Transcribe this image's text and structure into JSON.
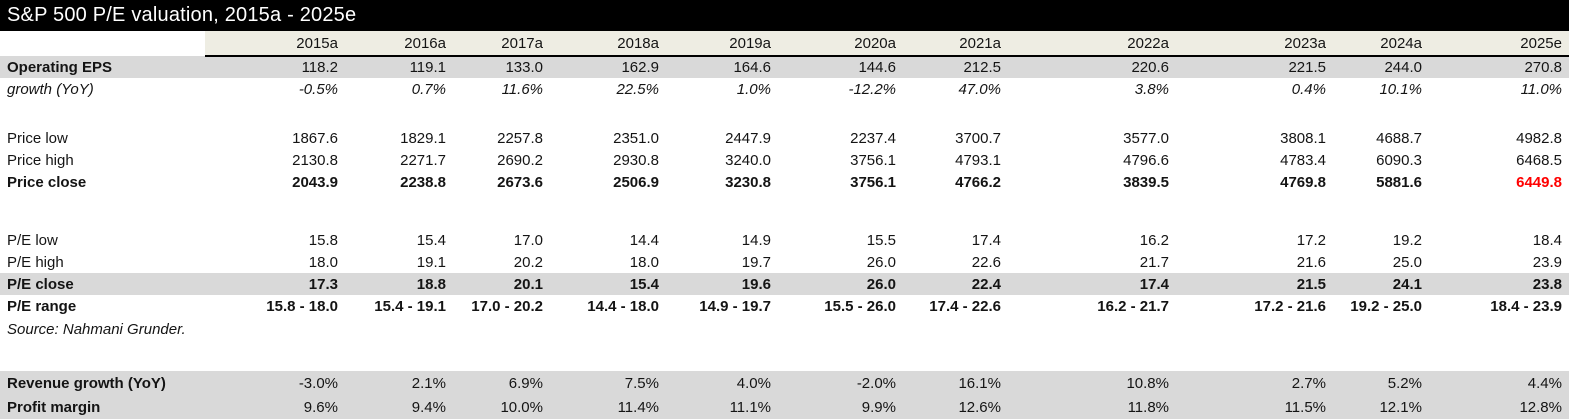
{
  "title": "S&P 500 P/E valuation, 2015a - 2025e",
  "colors": {
    "title_bg": "#000000",
    "title_text": "#FFFFFF",
    "header_bg": "#EEEDE3",
    "row_gray": "#D9D9D9",
    "highlight_red": "#FF0000"
  },
  "table": {
    "years": [
      "2015a",
      "2016a",
      "2017a",
      "2018a",
      "2019a",
      "2020a",
      "2021a",
      "2022a",
      "2023a",
      "2024a",
      "2025e"
    ],
    "rows": [
      {
        "label": "Operating EPS",
        "style": "eps",
        "values": [
          "118.2",
          "119.1",
          "133.0",
          "162.9",
          "164.6",
          "144.6",
          "212.5",
          "220.6",
          "221.5",
          "244.0",
          "270.8"
        ]
      },
      {
        "label": "growth (YoY)",
        "style": "growth",
        "values": [
          "-0.5%",
          "0.7%",
          "11.6%",
          "22.5%",
          "1.0%",
          "-12.2%",
          "47.0%",
          "3.8%",
          "0.4%",
          "10.1%",
          "11.0%"
        ]
      },
      {
        "style": "spacer1"
      },
      {
        "label": "Price low",
        "style": "plain",
        "values": [
          "1867.6",
          "1829.1",
          "2257.8",
          "2351.0",
          "2447.9",
          "2237.4",
          "3700.7",
          "3577.0",
          "3808.1",
          "4688.7",
          "4982.8"
        ]
      },
      {
        "label": "Price high",
        "style": "plain",
        "values": [
          "2130.8",
          "2271.7",
          "2690.2",
          "2930.8",
          "3240.0",
          "3756.1",
          "4793.1",
          "4796.6",
          "4783.4",
          "6090.3",
          "6468.5"
        ]
      },
      {
        "label": "Price close",
        "style": "bold",
        "red_last": true,
        "values": [
          "2043.9",
          "2238.8",
          "2673.6",
          "2506.9",
          "3230.8",
          "3756.1",
          "4766.2",
          "3839.5",
          "4769.8",
          "5881.6",
          "6449.8"
        ]
      },
      {
        "style": "spacer2"
      },
      {
        "label": "P/E low",
        "style": "plain",
        "values": [
          "15.8",
          "15.4",
          "17.0",
          "14.4",
          "14.9",
          "15.5",
          "17.4",
          "16.2",
          "17.2",
          "19.2",
          "18.4"
        ]
      },
      {
        "label": "P/E high",
        "style": "plain",
        "values": [
          "18.0",
          "19.1",
          "20.2",
          "18.0",
          "19.7",
          "26.0",
          "22.6",
          "21.7",
          "21.6",
          "25.0",
          "23.9"
        ]
      },
      {
        "label": "P/E close",
        "style": "pe-close",
        "values": [
          "17.3",
          "18.8",
          "20.1",
          "15.4",
          "19.6",
          "26.0",
          "22.4",
          "17.4",
          "21.5",
          "24.1",
          "23.8"
        ]
      },
      {
        "label": "P/E range",
        "style": "bold",
        "values": [
          "15.8 - 18.0",
          "15.4 - 19.1",
          "17.0 - 20.2",
          "14.4 - 18.0",
          "14.9 - 19.7",
          "15.5 - 26.0",
          "17.4 - 22.6",
          "16.2 - 21.7",
          "17.2 - 21.6",
          "19.2 - 25.0",
          "18.4 - 23.9"
        ]
      },
      {
        "label": "Source: Nahmani Grunder.",
        "style": "source",
        "values": []
      },
      {
        "style": "spacer3"
      },
      {
        "label": "Revenue growth (YoY)",
        "style": "metric",
        "values": [
          "-3.0%",
          "2.1%",
          "6.9%",
          "7.5%",
          "4.0%",
          "-2.0%",
          "16.1%",
          "10.8%",
          "2.7%",
          "5.2%",
          "4.4%"
        ]
      },
      {
        "label": "Profit margin",
        "style": "metric",
        "values": [
          "9.6%",
          "9.4%",
          "10.0%",
          "11.4%",
          "11.1%",
          "9.9%",
          "12.6%",
          "11.8%",
          "11.5%",
          "12.1%",
          "12.8%"
        ]
      }
    ]
  }
}
